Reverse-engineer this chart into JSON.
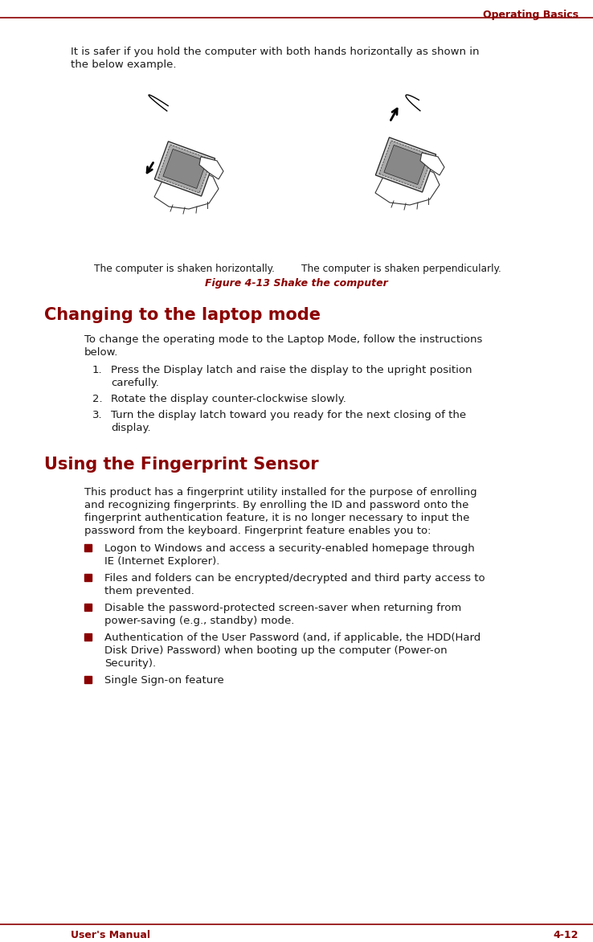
{
  "bg_color": "#ffffff",
  "header_color": "#8B0000",
  "header_text": "Operating Basics",
  "footer_left": "User's Manual",
  "footer_right": "4-12",
  "line_color": "#8B0000",
  "intro_text_line1": "It is safer if you hold the computer with both hands horizontally as shown in",
  "intro_text_line2": "the below example.",
  "caption_left": "The computer is shaken horizontally.",
  "caption_right": "The computer is shaken perpendicularly.",
  "figure_caption": "Figure 4-13 Shake the computer",
  "section1_title": "Changing to the laptop mode",
  "section1_intro_line1": "To change the operating mode to the Laptop Mode, follow the instructions",
  "section1_intro_line2": "below.",
  "section1_items": [
    [
      "Press the Display latch and raise the display to the upright position",
      "carefully."
    ],
    [
      "Rotate the display counter-clockwise slowly."
    ],
    [
      "Turn the display latch toward you ready for the next closing of the",
      "display."
    ]
  ],
  "section2_title": "Using the Fingerprint Sensor",
  "section2_intro": [
    "This product has a fingerprint utility installed for the purpose of enrolling",
    "and recognizing fingerprints. By enrolling the ID and password onto the",
    "fingerprint authentication feature, it is no longer necessary to input the",
    "password from the keyboard. Fingerprint feature enables you to:"
  ],
  "section2_bullets": [
    [
      "Logon to Windows and access a security-enabled homepage through",
      "IE (Internet Explorer)."
    ],
    [
      "Files and folders can be encrypted/decrypted and third party access to",
      "them prevented."
    ],
    [
      "Disable the password-protected screen-saver when returning from",
      "power-saving (e.g., standby) mode."
    ],
    [
      "Authentication of the User Password (and, if applicable, the HDD(Hard",
      "Disk Drive) Password) when booting up the computer (Power-on",
      "Security)."
    ],
    [
      "Single Sign-on feature"
    ]
  ],
  "text_color": "#1a1a1a",
  "title_color": "#8B0000",
  "figure_caption_color": "#8B0000",
  "bullet_color": "#8B0000"
}
